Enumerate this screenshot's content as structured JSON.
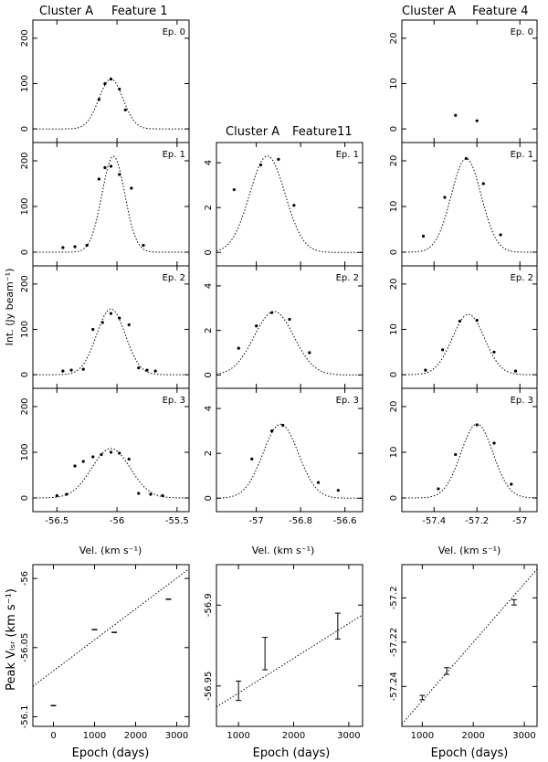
{
  "figure": {
    "column_titles": [
      {
        "cluster": "Cluster A",
        "feature": "Feature 1"
      },
      {
        "cluster": "Cluster A",
        "feature": "Feature11"
      },
      {
        "cluster": "Cluster A",
        "feature": "Feature 4"
      }
    ],
    "shared_ylabel_spectra": "Int. (Jy beam⁻¹)",
    "shared_ylabel_trend": "Peak Vₗₛᵣ (km s⁻¹)",
    "xlabel_spectra": "Vel. (km s⁻¹)",
    "xlabel_trend": "Epoch (days)"
  },
  "chart_data": [
    {
      "type": "scatter",
      "id": "f1-ep0",
      "column": 0,
      "row": 0,
      "label": "Ep. 0",
      "xlim": [
        -56.7,
        -55.4
      ],
      "ylim": [
        -30,
        240
      ],
      "xticks": [
        -56.5,
        -56,
        -55.5
      ],
      "xticklabels": [],
      "yticks": [
        0,
        100,
        200
      ],
      "x": [
        -56.15,
        -56.1,
        -56.05,
        -55.98,
        -55.93
      ],
      "y": [
        65,
        100,
        110,
        88,
        42
      ],
      "fit": {
        "peak": 110,
        "center": -56.05,
        "sigma": 0.1,
        "offset": 0
      }
    },
    {
      "type": "scatter",
      "id": "f1-ep1",
      "column": 0,
      "row": 1,
      "label": "Ep. 1",
      "xlim": [
        -56.7,
        -55.4
      ],
      "ylim": [
        -30,
        240
      ],
      "xticks": [
        -56.5,
        -56,
        -55.5
      ],
      "xticklabels": [],
      "yticks": [
        0,
        100,
        200
      ],
      "x": [
        -56.45,
        -56.35,
        -56.25,
        -56.15,
        -56.1,
        -56.05,
        -55.98,
        -55.88,
        -55.78
      ],
      "y": [
        10,
        12,
        15,
        160,
        185,
        188,
        170,
        140,
        15
      ],
      "fit": {
        "peak": 210,
        "center": -56.03,
        "sigma": 0.095,
        "offset": 0
      }
    },
    {
      "type": "scatter",
      "id": "f1-ep2",
      "column": 0,
      "row": 2,
      "label": "Ep. 2",
      "xlim": [
        -56.7,
        -55.4
      ],
      "ylim": [
        -30,
        240
      ],
      "xticks": [
        -56.5,
        -56,
        -55.5
      ],
      "xticklabels": [],
      "yticks": [
        0,
        100,
        200
      ],
      "x": [
        -56.45,
        -56.38,
        -56.28,
        -56.2,
        -56.12,
        -56.05,
        -55.98,
        -55.9,
        -55.82,
        -55.75,
        -55.68
      ],
      "y": [
        8,
        10,
        12,
        100,
        115,
        135,
        125,
        110,
        15,
        10,
        8
      ],
      "fit": {
        "peak": 145,
        "center": -56.05,
        "sigma": 0.12,
        "offset": 0
      }
    },
    {
      "type": "scatter",
      "id": "f1-ep3",
      "column": 0,
      "row": 3,
      "label": "Ep. 3",
      "xlim": [
        -56.7,
        -55.4
      ],
      "ylim": [
        -30,
        240
      ],
      "xticks": [
        -56.5,
        -56,
        -55.5
      ],
      "xticklabels": [
        "-56.5",
        "-56",
        "-55.5"
      ],
      "yticks": [
        0,
        100,
        200
      ],
      "x": [
        -56.5,
        -56.42,
        -56.35,
        -56.28,
        -56.2,
        -56.13,
        -56.05,
        -55.98,
        -55.9,
        -55.82,
        -55.72,
        -55.62
      ],
      "y": [
        5,
        8,
        70,
        80,
        90,
        95,
        100,
        98,
        85,
        10,
        8,
        5
      ],
      "fit": {
        "peak": 108,
        "center": -56.05,
        "sigma": 0.16,
        "offset": 0
      }
    },
    {
      "type": "scatter",
      "id": "f11-ep1",
      "column": 1,
      "row": 1,
      "label": "Ep. 1",
      "xlim": [
        -57.18,
        -56.52
      ],
      "ylim": [
        -0.6,
        4.9
      ],
      "xticks": [
        -57,
        -56.8,
        -56.6
      ],
      "xticklabels": [],
      "yticks": [
        0,
        2,
        4
      ],
      "x": [
        -57.1,
        -56.98,
        -56.9,
        -56.83
      ],
      "y": [
        2.8,
        3.9,
        4.15,
        2.1
      ],
      "fit": {
        "peak": 4.3,
        "center": -56.95,
        "sigma": 0.08,
        "offset": 0
      }
    },
    {
      "type": "scatter",
      "id": "f11-ep2",
      "column": 1,
      "row": 2,
      "label": "Ep. 2",
      "xlim": [
        -57.18,
        -56.52
      ],
      "ylim": [
        -0.6,
        4.9
      ],
      "xticks": [
        -57,
        -56.8,
        -56.6
      ],
      "xticklabels": [],
      "yticks": [
        0,
        2,
        4
      ],
      "x": [
        -57.08,
        -57.0,
        -56.93,
        -56.85,
        -56.76
      ],
      "y": [
        1.2,
        2.2,
        2.8,
        2.5,
        1.0
      ],
      "fit": {
        "peak": 2.85,
        "center": -56.92,
        "sigma": 0.09,
        "offset": 0
      }
    },
    {
      "type": "scatter",
      "id": "f11-ep3",
      "column": 1,
      "row": 3,
      "label": "Ep. 3",
      "xlim": [
        -57.18,
        -56.52
      ],
      "ylim": [
        -0.6,
        4.9
      ],
      "xticks": [
        -57,
        -56.8,
        -56.6
      ],
      "xticklabels": [
        "-57",
        "-56.8",
        "-56.6"
      ],
      "yticks": [
        0,
        2,
        4
      ],
      "x": [
        -57.02,
        -56.93,
        -56.88,
        -56.72,
        -56.63
      ],
      "y": [
        1.75,
        3.0,
        3.25,
        0.7,
        0.35
      ],
      "fit": {
        "peak": 3.3,
        "center": -56.89,
        "sigma": 0.08,
        "offset": 0
      }
    },
    {
      "type": "scatter",
      "id": "f4-ep0",
      "column": 2,
      "row": 0,
      "label": "Ep. 0",
      "xlim": [
        -57.55,
        -56.92
      ],
      "ylim": [
        -3,
        24
      ],
      "xticks": [
        -57.4,
        -57.2,
        -57
      ],
      "xticklabels": [],
      "yticks": [
        0,
        10,
        20
      ],
      "x": [
        -57.3,
        -57.2
      ],
      "y": [
        3.0,
        1.8
      ],
      "fit": null
    },
    {
      "type": "scatter",
      "id": "f4-ep1",
      "column": 2,
      "row": 1,
      "label": "Ep. 1",
      "xlim": [
        -57.55,
        -56.92
      ],
      "ylim": [
        -3,
        24
      ],
      "xticks": [
        -57.4,
        -57.2,
        -57
      ],
      "xticklabels": [],
      "yticks": [
        0,
        10,
        20
      ],
      "x": [
        -57.45,
        -57.35,
        -57.25,
        -57.17,
        -57.09
      ],
      "y": [
        3.5,
        12,
        20.5,
        15,
        3.8
      ],
      "fit": {
        "peak": 20.5,
        "center": -57.25,
        "sigma": 0.07,
        "offset": 0
      }
    },
    {
      "type": "scatter",
      "id": "f4-ep2",
      "column": 2,
      "row": 2,
      "label": "Ep. 2",
      "xlim": [
        -57.55,
        -56.92
      ],
      "ylim": [
        -3,
        24
      ],
      "xticks": [
        -57.4,
        -57.2,
        -57
      ],
      "xticklabels": [],
      "yticks": [
        0,
        10,
        20
      ],
      "x": [
        -57.44,
        -57.36,
        -57.28,
        -57.2,
        -57.12,
        -57.02
      ],
      "y": [
        1.0,
        5.5,
        11.8,
        12.0,
        5.0,
        0.8
      ],
      "fit": {
        "peak": 13.3,
        "center": -57.24,
        "sigma": 0.075,
        "offset": 0
      }
    },
    {
      "type": "scatter",
      "id": "f4-ep3",
      "column": 2,
      "row": 3,
      "label": "Ep. 3",
      "xlim": [
        -57.55,
        -56.92
      ],
      "ylim": [
        -3,
        24
      ],
      "xticks": [
        -57.4,
        -57.2,
        -57
      ],
      "xticklabels": [
        "-57.4",
        "-57.2",
        "-57"
      ],
      "yticks": [
        0,
        10,
        20
      ],
      "x": [
        -57.38,
        -57.3,
        -57.2,
        -57.12,
        -57.04
      ],
      "y": [
        2.0,
        9.5,
        16,
        12,
        3.0
      ],
      "fit": {
        "peak": 16.2,
        "center": -57.2,
        "sigma": 0.075,
        "offset": 0
      }
    },
    {
      "type": "line",
      "id": "f1-trend",
      "column": 0,
      "row": 4,
      "xlim": [
        -500,
        3300
      ],
      "ylim": [
        -56.107,
        -55.99
      ],
      "xticks": [
        0,
        1000,
        2000,
        3000
      ],
      "xticklabels": [
        "0",
        "1000",
        "2000",
        "3000"
      ],
      "yticks": [
        -56.1,
        -56.05,
        -56
      ],
      "yticklabels": [
        "-56.1",
        "-56.05",
        "-56"
      ],
      "points": [
        {
          "x": 0,
          "y": -56.092,
          "err": 0
        },
        {
          "x": 1000,
          "y": -56.037,
          "err": 0
        },
        {
          "x": 1480,
          "y": -56.039,
          "err": 0
        },
        {
          "x": 2800,
          "y": -56.015,
          "err": 0
        }
      ],
      "fit_line": {
        "x": [
          -500,
          3300
        ],
        "y": [
          -56.078,
          -55.993
        ]
      }
    },
    {
      "type": "line",
      "id": "f11-trend",
      "column": 1,
      "row": 4,
      "xlim": [
        600,
        3250
      ],
      "ylim": [
        -56.975,
        -56.875
      ],
      "xticks": [
        1000,
        2000,
        3000
      ],
      "xticklabels": [
        "1000",
        "2000",
        "3000"
      ],
      "yticks": [
        -56.95,
        -56.9
      ],
      "yticklabels": [
        "-56.95",
        "-56.9"
      ],
      "points": [
        {
          "x": 1000,
          "y": -56.953,
          "err": 0.006
        },
        {
          "x": 1480,
          "y": -56.93,
          "err": 0.01
        },
        {
          "x": 2800,
          "y": -56.913,
          "err": 0.008
        }
      ],
      "fit_line": {
        "x": [
          600,
          3250
        ],
        "y": [
          -56.963,
          -56.906
        ]
      }
    },
    {
      "type": "line",
      "id": "f4-trend",
      "column": 2,
      "row": 4,
      "xlim": [
        600,
        3250
      ],
      "ylim": [
        -57.258,
        -57.185
      ],
      "xticks": [
        1000,
        2000,
        3000
      ],
      "xticklabels": [
        "1000",
        "2000",
        "3000"
      ],
      "yticks": [
        -57.24,
        -57.22,
        -57.2
      ],
      "yticklabels": [
        "-57.24",
        "-57.22",
        "-57.2"
      ],
      "points": [
        {
          "x": 1000,
          "y": -57.245,
          "err": 0.001
        },
        {
          "x": 1480,
          "y": -57.233,
          "err": 0.0015
        },
        {
          "x": 2800,
          "y": -57.202,
          "err": 0.0012
        }
      ],
      "fit_line": {
        "x": [
          600,
          3250
        ],
        "y": [
          -57.257,
          -57.187
        ]
      }
    }
  ]
}
